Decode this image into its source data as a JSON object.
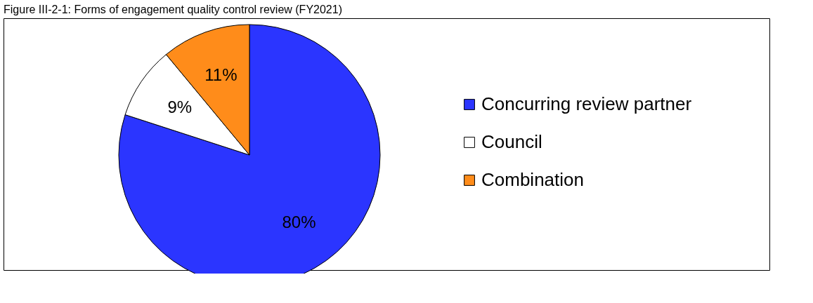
{
  "chart_data": {
    "type": "pie",
    "title": "Figure III-2-1: Forms of engagement quality control review (FY2021)",
    "categories": [
      "Concurring review partner",
      "Council",
      "Combination"
    ],
    "values": [
      80,
      9,
      11
    ],
    "colors": [
      "#2b35ff",
      "#ffffff",
      "#ff8c1a"
    ],
    "value_labels": [
      "80%",
      "9%",
      "11%"
    ],
    "legend": "right"
  }
}
